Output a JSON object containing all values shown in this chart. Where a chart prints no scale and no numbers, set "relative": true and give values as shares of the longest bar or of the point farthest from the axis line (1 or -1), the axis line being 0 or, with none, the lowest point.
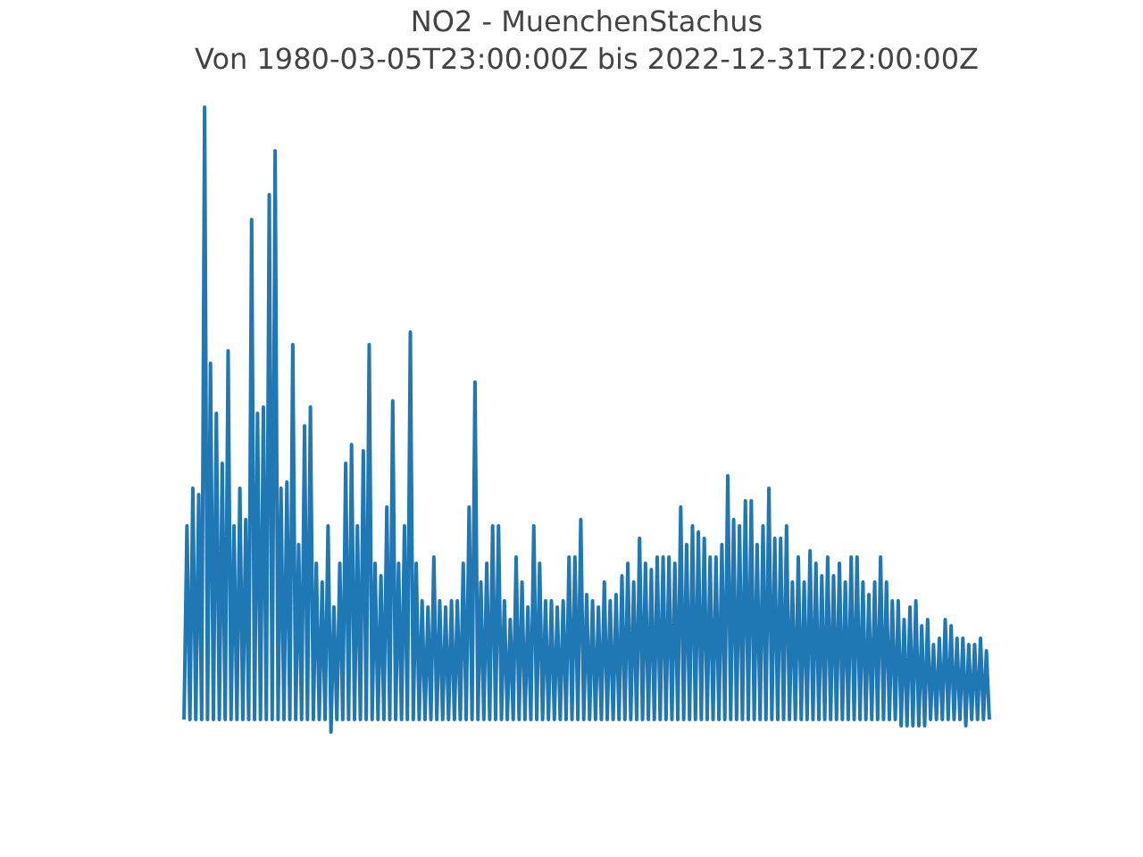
{
  "chart_data": {
    "type": "line",
    "title": "NO2 - MuenchenStachus",
    "subtitle": "Von 1980-03-05T23:00:00Z bis 2022-12-31T22:00:00Z",
    "relative": true,
    "grid": false,
    "line_style": "solid",
    "marker": "none",
    "series": [
      {
        "color": "#1f77b4",
        "values": [
          0.02,
          0.33,
          0.02,
          0.39,
          0.02,
          0.38,
          0.02,
          1,
          0.02,
          0.59,
          0.02,
          0.51,
          0.02,
          0.43,
          0.02,
          0.61,
          0.02,
          0.33,
          0.02,
          0.39,
          0.02,
          0.34,
          0.02,
          0.82,
          0.02,
          0.51,
          0.02,
          0.52,
          0.02,
          0.86,
          0.02,
          0.93,
          0.02,
          0.39,
          0.02,
          0.4,
          0.02,
          0.62,
          0.02,
          0.3,
          0.02,
          0.49,
          0.02,
          0.52,
          0.02,
          0.27,
          0.02,
          0.24,
          0.02,
          0.33,
          0,
          0.2,
          0.02,
          0.27,
          0.02,
          0.43,
          0.02,
          0.46,
          0.02,
          0.33,
          0.02,
          0.45,
          0.02,
          0.62,
          0.02,
          0.27,
          0.02,
          0.25,
          0.02,
          0.36,
          0.02,
          0.53,
          0.02,
          0.27,
          0.02,
          0.33,
          0.02,
          0.64,
          0.02,
          0.27,
          0.02,
          0.21,
          0.02,
          0.2,
          0.02,
          0.28,
          0.02,
          0.21,
          0.02,
          0.2,
          0.02,
          0.21,
          0.02,
          0.21,
          0.02,
          0.27,
          0.02,
          0.36,
          0.02,
          0.56,
          0.02,
          0.24,
          0.02,
          0.27,
          0.02,
          0.33,
          0.02,
          0.33,
          0.02,
          0.21,
          0.02,
          0.18,
          0.02,
          0.28,
          0.02,
          0.24,
          0.02,
          0.2,
          0.02,
          0.33,
          0.02,
          0.27,
          0.02,
          0.21,
          0.02,
          0.21,
          0.02,
          0.2,
          0.02,
          0.21,
          0.02,
          0.28,
          0.02,
          0.28,
          0.02,
          0.34,
          0.02,
          0.22,
          0.02,
          0.21,
          0.02,
          0.2,
          0.02,
          0.24,
          0.02,
          0.21,
          0.02,
          0.22,
          0.02,
          0.25,
          0.02,
          0.27,
          0.02,
          0.24,
          0.02,
          0.31,
          0.02,
          0.27,
          0.02,
          0.26,
          0.02,
          0.28,
          0.02,
          0.28,
          0.02,
          0.28,
          0.02,
          0.27,
          0.02,
          0.36,
          0.02,
          0.3,
          0.02,
          0.33,
          0.02,
          0.32,
          0.02,
          0.31,
          0.02,
          0.28,
          0.02,
          0.28,
          0.02,
          0.3,
          0.02,
          0.41,
          0.02,
          0.34,
          0.02,
          0.33,
          0.02,
          0.37,
          0.02,
          0.37,
          0.02,
          0.3,
          0.02,
          0.33,
          0.02,
          0.39,
          0.02,
          0.31,
          0.02,
          0.31,
          0.02,
          0.33,
          0.02,
          0.24,
          0.02,
          0.28,
          0.02,
          0.24,
          0.02,
          0.29,
          0.02,
          0.27,
          0.02,
          0.25,
          0.02,
          0.28,
          0.02,
          0.25,
          0.02,
          0.27,
          0.02,
          0.24,
          0.02,
          0.28,
          0.02,
          0.28,
          0.02,
          0.24,
          0.02,
          0.22,
          0.02,
          0.24,
          0.02,
          0.28,
          0.02,
          0.24,
          0.02,
          0.21,
          0.02,
          0.21,
          0.01,
          0.18,
          0.01,
          0.2,
          0.01,
          0.21,
          0.01,
          0.17,
          0.01,
          0.18,
          0.02,
          0.14,
          0.02,
          0.15,
          0.02,
          0.18,
          0.02,
          0.17,
          0.02,
          0.15,
          0.02,
          0.15,
          0.01,
          0.14,
          0.02,
          0.14,
          0.02,
          0.15,
          0.02,
          0.13,
          0.02
        ]
      }
    ]
  }
}
